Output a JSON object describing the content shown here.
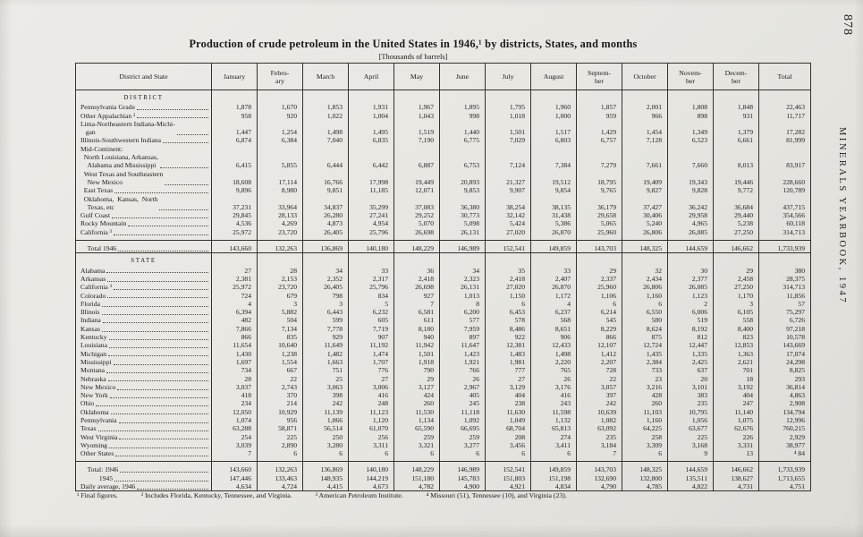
{
  "page": {
    "page_number": "878",
    "side_text": "MINERALS YEARBOOK, 1947",
    "title": "Production of crude petroleum in the United States in 1946,¹ by districts, States, and months",
    "subtitle": "[Thousands of barrels]",
    "footnotes": [
      "¹ Final figures.",
      "² Includes Florida, Kentucky, Tennessee, and Virginia.",
      "³ American Petroleum Institute.",
      "⁴ Missouri (51), Tennessee (10), and Virginia (23)."
    ]
  },
  "table": {
    "headers": [
      "District and State",
      "January",
      "Febru-\nary",
      "March",
      "April",
      "May",
      "June",
      "July",
      "August",
      "Septem-\nber",
      "October",
      "Novem-\nber",
      "Decem-\nber",
      "Total"
    ],
    "rows": [
      {
        "t": "section",
        "label": "DISTRICT"
      },
      {
        "t": "data",
        "label": "Pennsylvania Grade",
        "v": [
          "1,878",
          "1,670",
          "1,853",
          "1,931",
          "1,967",
          "1,895",
          "1,795",
          "1,960",
          "1,857",
          "2,001",
          "1,808",
          "1,848",
          "22,463"
        ]
      },
      {
        "t": "data",
        "label": "Other Appalachian ²",
        "v": [
          "958",
          "920",
          "1,022",
          "1,004",
          "1,043",
          "998",
          "1,018",
          "1,000",
          "959",
          "966",
          "898",
          "931",
          "11,717"
        ]
      },
      {
        "t": "data",
        "label": "Lima-Northeastern Indiana-Michi-\n   gan",
        "v": [
          "1,447",
          "1,254",
          "1,498",
          "1,495",
          "1,519",
          "1,440",
          "1,501",
          "1,517",
          "1,429",
          "1,454",
          "1,349",
          "1,379",
          "17,282"
        ]
      },
      {
        "t": "data",
        "label": "Illinois-Southwestern Indiana",
        "v": [
          "6,874",
          "6,384",
          "7,040",
          "6,835",
          "7,190",
          "6,775",
          "7,029",
          "6,803",
          "6,757",
          "7,128",
          "6,523",
          "6,661",
          "81,999"
        ]
      },
      {
        "t": "group",
        "label": "Mid-Continent:"
      },
      {
        "t": "data",
        "label": "  North Louisiana, Arkansas,\n    Alabama and Mississippi",
        "v": [
          "6,415",
          "5,855",
          "6,444",
          "6,442",
          "6,887",
          "6,753",
          "7,124",
          "7,384",
          "7,279",
          "7,661",
          "7,660",
          "8,013",
          "83,917"
        ]
      },
      {
        "t": "data",
        "label": "  West Texas and Southeastern\n    New Mexico",
        "v": [
          "18,608",
          "17,114",
          "16,766",
          "17,998",
          "19,449",
          "20,893",
          "21,327",
          "19,512",
          "18,795",
          "19,409",
          "19,343",
          "19,446",
          "228,660"
        ]
      },
      {
        "t": "data",
        "label": "  East Texas",
        "v": [
          "9,896",
          "8,980",
          "9,851",
          "11,185",
          "12,071",
          "9,853",
          "9,907",
          "9,854",
          "9,765",
          "9,827",
          "9,828",
          "9,772",
          "120,789"
        ]
      },
      {
        "t": "data",
        "label": "  Oklahoma,  Kansas,  North\n    Texas, etc",
        "v": [
          "37,231",
          "33,964",
          "34,837",
          "35,299",
          "37,083",
          "36,380",
          "38,254",
          "38,135",
          "36,179",
          "37,427",
          "36,242",
          "36,684",
          "437,715"
        ]
      },
      {
        "t": "data",
        "label": "Gulf Coast",
        "v": [
          "29,845",
          "28,133",
          "26,280",
          "27,241",
          "29,252",
          "30,773",
          "32,142",
          "31,438",
          "29,658",
          "30,406",
          "29,958",
          "29,440",
          "354,566"
        ]
      },
      {
        "t": "data",
        "label": "Rocky Mountain",
        "v": [
          "4,536",
          "4,269",
          "4,873",
          "4,954",
          "5,070",
          "5,098",
          "5,424",
          "5,386",
          "5,065",
          "5,240",
          "4,965",
          "5,238",
          "60,118"
        ]
      },
      {
        "t": "data",
        "label": "California ³",
        "gapB": true,
        "v": [
          "25,972",
          "23,720",
          "26,405",
          "25,796",
          "26,698",
          "26,131",
          "27,020",
          "26,870",
          "25,960",
          "26,806",
          "26,085",
          "27,250",
          "314,713"
        ]
      },
      {
        "t": "total",
        "label": "    Total 1946",
        "rule": true,
        "ruleB": true,
        "sp": true,
        "v": [
          "143,660",
          "132,263",
          "136,869",
          "140,180",
          "148,229",
          "146,989",
          "152,541",
          "149,859",
          "143,703",
          "148,325",
          "144,659",
          "146,662",
          "1,733,939"
        ]
      },
      {
        "t": "section",
        "label": "STATE",
        "sp": true
      },
      {
        "t": "data",
        "label": "Alabama",
        "v": [
          "27",
          "28",
          "34",
          "33",
          "36",
          "34",
          "35",
          "33",
          "29",
          "32",
          "30",
          "29",
          "380"
        ]
      },
      {
        "t": "data",
        "label": "Arkansas",
        "v": [
          "2,381",
          "2,153",
          "2,352",
          "2,317",
          "2,418",
          "2,323",
          "2,418",
          "2,407",
          "2,337",
          "2,434",
          "2,377",
          "2,458",
          "28,375"
        ]
      },
      {
        "t": "data",
        "label": "California ³",
        "v": [
          "25,972",
          "23,720",
          "26,405",
          "25,796",
          "26,698",
          "26,131",
          "27,020",
          "26,870",
          "25,960",
          "26,806",
          "26,085",
          "27,250",
          "314,713"
        ]
      },
      {
        "t": "data",
        "label": "Colorado",
        "v": [
          "724",
          "679",
          "798",
          "834",
          "927",
          "1,013",
          "1,150",
          "1,172",
          "1,106",
          "1,160",
          "1,123",
          "1,170",
          "11,856"
        ]
      },
      {
        "t": "data",
        "label": "Florida",
        "v": [
          "4",
          "3",
          "3",
          "5",
          "7",
          "8",
          "6",
          "4",
          "6",
          "6",
          "2",
          "3",
          "57"
        ]
      },
      {
        "t": "data",
        "label": "Illinois",
        "v": [
          "6,394",
          "5,882",
          "6,443",
          "6,232",
          "6,581",
          "6,200",
          "6,453",
          "6,237",
          "6,214",
          "6,550",
          "6,006",
          "6,105",
          "75,297"
        ]
      },
      {
        "t": "data",
        "label": "Indiana",
        "v": [
          "482",
          "504",
          "599",
          "605",
          "611",
          "577",
          "578",
          "568",
          "545",
          "580",
          "519",
          "558",
          "6,726"
        ]
      },
      {
        "t": "data",
        "label": "Kansas",
        "v": [
          "7,866",
          "7,134",
          "7,778",
          "7,719",
          "8,180",
          "7,959",
          "8,486",
          "8,651",
          "8,229",
          "8,624",
          "8,192",
          "8,400",
          "97,218"
        ]
      },
      {
        "t": "data",
        "label": "Kentucky",
        "v": [
          "866",
          "835",
          "929",
          "907",
          "940",
          "897",
          "922",
          "906",
          "866",
          "875",
          "812",
          "823",
          "10,578"
        ]
      },
      {
        "t": "data",
        "label": "Louisiana",
        "v": [
          "11,654",
          "10,640",
          "11,649",
          "11,192",
          "11,942",
          "11,647",
          "12,381",
          "12,433",
          "12,107",
          "12,724",
          "12,447",
          "12,853",
          "143,669"
        ]
      },
      {
        "t": "data",
        "label": "Michigan",
        "v": [
          "1,430",
          "1,238",
          "1,482",
          "1,474",
          "1,501",
          "1,423",
          "1,483",
          "1,498",
          "1,412",
          "1,435",
          "1,335",
          "1,363",
          "17,074"
        ]
      },
      {
        "t": "data",
        "label": "Mississippi",
        "v": [
          "1,697",
          "1,554",
          "1,663",
          "1,707",
          "1,918",
          "1,921",
          "1,981",
          "2,220",
          "2,207",
          "2,384",
          "2,425",
          "2,621",
          "24,298"
        ]
      },
      {
        "t": "data",
        "label": "Montana",
        "v": [
          "734",
          "667",
          "751",
          "776",
          "790",
          "766",
          "777",
          "765",
          "728",
          "733",
          "637",
          "701",
          "8,825"
        ]
      },
      {
        "t": "data",
        "label": "Nebraska",
        "v": [
          "28",
          "22",
          "25",
          "27",
          "29",
          "26",
          "27",
          "26",
          "22",
          "23",
          "20",
          "18",
          "293"
        ]
      },
      {
        "t": "data",
        "label": "New Mexico",
        "v": [
          "3,037",
          "2,743",
          "3,063",
          "3,006",
          "3,127",
          "2,967",
          "3,129",
          "3,176",
          "3,057",
          "3,216",
          "3,101",
          "3,192",
          "36,814"
        ]
      },
      {
        "t": "data",
        "label": "New York",
        "v": [
          "418",
          "370",
          "398",
          "416",
          "424",
          "405",
          "404",
          "416",
          "397",
          "428",
          "383",
          "404",
          "4,863"
        ]
      },
      {
        "t": "data",
        "label": "Ohio",
        "v": [
          "234",
          "214",
          "242",
          "248",
          "260",
          "245",
          "238",
          "243",
          "242",
          "260",
          "235",
          "247",
          "2,908"
        ]
      },
      {
        "t": "data",
        "label": "Oklahoma",
        "v": [
          "12,050",
          "10,929",
          "11,139",
          "11,123",
          "11,530",
          "11,118",
          "11,630",
          "11,598",
          "10,639",
          "11,103",
          "10,795",
          "11,140",
          "134,794"
        ]
      },
      {
        "t": "data",
        "label": "Pennsylvania",
        "v": [
          "1,074",
          "956",
          "1,066",
          "1,120",
          "1,134",
          "1,092",
          "1,049",
          "1,132",
          "1,082",
          "1,160",
          "1,056",
          "1,075",
          "12,996"
        ]
      },
      {
        "t": "data",
        "label": "Texas",
        "v": [
          "63,288",
          "58,871",
          "56,514",
          "61,070",
          "65,590",
          "66,695",
          "68,704",
          "65,813",
          "63,092",
          "64,225",
          "63,677",
          "62,676",
          "760,215"
        ]
      },
      {
        "t": "data",
        "label": "West Virginia",
        "v": [
          "254",
          "225",
          "250",
          "256",
          "259",
          "259",
          "208",
          "274",
          "235",
          "258",
          "225",
          "226",
          "2,929"
        ]
      },
      {
        "t": "data",
        "label": "Wyoming",
        "v": [
          "3,039",
          "2,890",
          "3,280",
          "3,311",
          "3,321",
          "3,277",
          "3,456",
          "3,411",
          "3,184",
          "3,309",
          "3,168",
          "3,331",
          "38,977"
        ]
      },
      {
        "t": "data",
        "label": "Other States",
        "gapB": true,
        "v": [
          "7",
          "6",
          "6",
          "6",
          "6",
          "6",
          "6",
          "6",
          "7",
          "6",
          "9",
          "13",
          "⁴ 84"
        ]
      },
      {
        "t": "total",
        "label": "    Total: 1946",
        "rule": true,
        "sp": true,
        "v": [
          "143,660",
          "132,263",
          "136,869",
          "140,180",
          "148,229",
          "146,989",
          "152,541",
          "149,859",
          "143,703",
          "148,325",
          "144,659",
          "146,662",
          "1,733,939"
        ]
      },
      {
        "t": "total",
        "label": "           1945",
        "v": [
          "147,446",
          "133,463",
          "148,935",
          "144,219",
          "151,180",
          "145,783",
          "151,803",
          "151,198",
          "132,690",
          "132,800",
          "135,511",
          "138,627",
          "1,713,655"
        ]
      },
      {
        "t": "total",
        "label": "Daily average, 1946",
        "v": [
          "4,634",
          "4,724",
          "4,415",
          "4,673",
          "4,782",
          "4,900",
          "4,921",
          "4,834",
          "4,790",
          "4,785",
          "4,822",
          "4,731",
          "4,751"
        ]
      }
    ]
  }
}
